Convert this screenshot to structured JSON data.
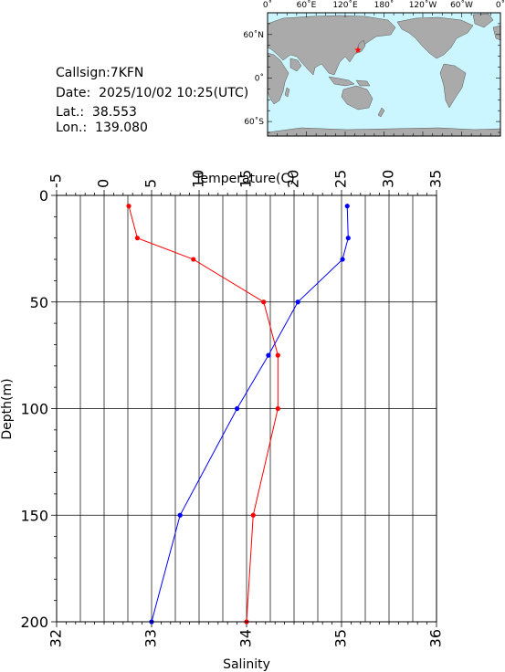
{
  "station": {
    "callsign_line": "Callsign:7KFN",
    "date_line": "Date:  2025/10/02 10:25(UTC)",
    "lat_line": "Lat.:  38.553",
    "lon_line": "Lon.:  139.080"
  },
  "map": {
    "top_ticks": [
      "0˚",
      "60˚E",
      "120˚E",
      "180˚",
      "120˚W",
      "60˚W",
      "0˚"
    ],
    "left_ticks": [
      "60˚N",
      "0˚",
      "60˚S"
    ],
    "ocean_color": "#ccf6ff",
    "land_color": "#aaaaaa",
    "marker_color": "#ff0000"
  },
  "chart_data": {
    "type": "line",
    "ylabel": "Depth(m)",
    "ylim": [
      200,
      0
    ],
    "yticks": [
      0,
      50,
      100,
      150,
      200
    ],
    "top_axis": {
      "label": "Temperature(C)",
      "lim": [
        -5,
        35
      ],
      "ticks": [
        -5,
        0,
        5,
        10,
        15,
        20,
        25,
        30,
        35
      ]
    },
    "bottom_axis": {
      "label": "Salinity",
      "lim": [
        32,
        36
      ],
      "ticks": [
        32,
        33,
        34,
        35,
        36
      ]
    },
    "grid": true,
    "series": [
      {
        "quantity": "temperature",
        "axis": "top",
        "color": "#ff0000",
        "points": [
          {
            "x": 2.6,
            "depth": 5
          },
          {
            "x": 3.5,
            "depth": 20
          },
          {
            "x": 9.4,
            "depth": 30
          },
          {
            "x": 16.8,
            "depth": 50
          },
          {
            "x": 18.3,
            "depth": 75
          },
          {
            "x": 18.3,
            "depth": 100
          },
          {
            "x": 15.7,
            "depth": 150
          },
          {
            "x": 15.0,
            "depth": 200
          }
        ]
      },
      {
        "quantity": "salinity",
        "axis": "bottom",
        "color": "#0000ff",
        "points": [
          {
            "x": 35.06,
            "depth": 5
          },
          {
            "x": 35.07,
            "depth": 20
          },
          {
            "x": 35.01,
            "depth": 30
          },
          {
            "x": 34.54,
            "depth": 50
          },
          {
            "x": 34.23,
            "depth": 75
          },
          {
            "x": 33.9,
            "depth": 100
          },
          {
            "x": 33.3,
            "depth": 150
          },
          {
            "x": 33.0,
            "depth": 200
          }
        ]
      }
    ]
  }
}
